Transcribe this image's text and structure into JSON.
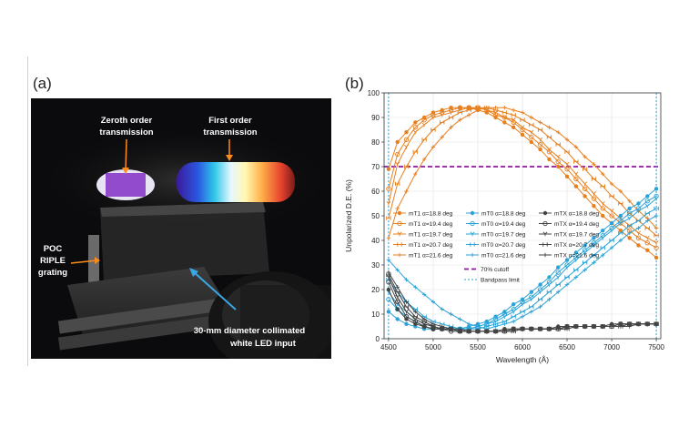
{
  "panel_a": {
    "label": "(a)",
    "zeroth_order": [
      "Zeroth order",
      "transmission"
    ],
    "first_order": [
      "First order",
      "transmission"
    ],
    "grating": [
      "POC",
      "RIPLE",
      "grating"
    ],
    "led_input": [
      "30-mm diameter collimated",
      "white LED input"
    ]
  },
  "panel_b": {
    "label": "(b)"
  },
  "colors": {
    "orange": "#e87f1e",
    "blue": "#2aa3d8",
    "dark": "#444444",
    "cutoff": "#8b1a9a"
  },
  "chart_data": {
    "type": "line",
    "xlabel": "Wavelength (Å)",
    "ylabel": "Unpolarized D.E. (%)",
    "xlim": [
      4450,
      7550
    ],
    "ylim": [
      0,
      100
    ],
    "xticks": [
      4500,
      5000,
      5500,
      6000,
      6500,
      7000,
      7500
    ],
    "yticks": [
      0,
      10,
      20,
      30,
      40,
      50,
      60,
      70,
      80,
      90,
      100
    ],
    "grid": true,
    "legend_position": "middle-left",
    "x": [
      4500,
      4600,
      4700,
      4800,
      4900,
      5000,
      5100,
      5200,
      5300,
      5400,
      5500,
      5600,
      5700,
      5800,
      5900,
      6000,
      6100,
      6200,
      6300,
      6400,
      6500,
      6600,
      6700,
      6800,
      6900,
      7000,
      7100,
      7200,
      7300,
      7400,
      7500
    ],
    "series": [
      {
        "name": "mT1 α=18.8 deg",
        "group": "mT1",
        "values": [
          69,
          80,
          84,
          88,
          90,
          92,
          93,
          94,
          94,
          94,
          93,
          92,
          90,
          88,
          86,
          83,
          80,
          77,
          73,
          70,
          66,
          62,
          58,
          54,
          50,
          47,
          44,
          41,
          38,
          36,
          33
        ]
      },
      {
        "name": "mT1 α=19.4 deg",
        "group": "mT1",
        "values": [
          61,
          75,
          81,
          86,
          89,
          91,
          92,
          93,
          94,
          94,
          94,
          93,
          91,
          90,
          88,
          85,
          82,
          79,
          76,
          72,
          69,
          65,
          61,
          57,
          53,
          50,
          47,
          44,
          41,
          39,
          37
        ]
      },
      {
        "name": "mT1 α=19.7 deg",
        "group": "mT1",
        "values": [
          55,
          71,
          78,
          84,
          87,
          90,
          91,
          92,
          93,
          94,
          94,
          93,
          92,
          90,
          89,
          86,
          84,
          81,
          77,
          74,
          71,
          67,
          63,
          59,
          55,
          52,
          49,
          46,
          43,
          41,
          39
        ]
      },
      {
        "name": "mT1 α=20.7 deg",
        "group": "mT1",
        "values": [
          49,
          63,
          70,
          76,
          81,
          85,
          88,
          90,
          92,
          93,
          94,
          94,
          93,
          92,
          91,
          89,
          87,
          85,
          82,
          79,
          76,
          72,
          69,
          65,
          62,
          58,
          55,
          51,
          48,
          45,
          42
        ]
      },
      {
        "name": "mT1 α=21.6 deg",
        "group": "mT1",
        "values": [
          41,
          53,
          60,
          67,
          73,
          78,
          82,
          86,
          89,
          91,
          93,
          94,
          94,
          94,
          93,
          92,
          90,
          88,
          86,
          84,
          81,
          78,
          74,
          71,
          67,
          63,
          60,
          56,
          52,
          49,
          45
        ]
      },
      {
        "name": "mT0 α=18.8 deg",
        "group": "mT0",
        "values": [
          11,
          8,
          6,
          5,
          4,
          4,
          4,
          4,
          4,
          5,
          6,
          7,
          9,
          11,
          14,
          16,
          19,
          22,
          25,
          29,
          32,
          35,
          38,
          41,
          44,
          47,
          50,
          53,
          55,
          58,
          61
        ]
      },
      {
        "name": "mT0 α=19.4 deg",
        "group": "mT0",
        "values": [
          16,
          12,
          9,
          7,
          5,
          4,
          4,
          4,
          4,
          4,
          5,
          6,
          8,
          10,
          12,
          15,
          17,
          20,
          23,
          27,
          30,
          33,
          36,
          39,
          42,
          45,
          48,
          51,
          53,
          56,
          58
        ]
      },
      {
        "name": "mT0 α=19.7 deg",
        "group": "mT0",
        "values": [
          19,
          14,
          11,
          8,
          6,
          5,
          4,
          4,
          4,
          4,
          5,
          6,
          7,
          9,
          11,
          14,
          16,
          19,
          22,
          25,
          29,
          32,
          35,
          38,
          41,
          44,
          47,
          49,
          52,
          54,
          57
        ]
      },
      {
        "name": "mT0 α=20.7 deg",
        "group": "mT0",
        "values": [
          24,
          19,
          15,
          12,
          9,
          7,
          6,
          5,
          4,
          4,
          4,
          5,
          6,
          7,
          9,
          11,
          13,
          16,
          19,
          22,
          25,
          28,
          31,
          34,
          37,
          40,
          43,
          46,
          48,
          51,
          53
        ]
      },
      {
        "name": "mT0 α=21.6 deg",
        "group": "mT0",
        "values": [
          32,
          28,
          24,
          21,
          18,
          15,
          12,
          10,
          8,
          6,
          5,
          4,
          5,
          6,
          7,
          9,
          11,
          13,
          16,
          19,
          22,
          25,
          28,
          31,
          34,
          37,
          40,
          43,
          45,
          48,
          50
        ]
      },
      {
        "name": "mTX α=18.8 deg",
        "group": "mTX",
        "values": [
          20,
          12,
          8,
          6,
          5,
          4,
          4,
          4,
          3,
          3,
          3,
          3,
          3,
          4,
          4,
          4,
          4,
          4,
          4,
          5,
          5,
          5,
          5,
          5,
          5,
          6,
          6,
          6,
          6,
          6,
          6
        ]
      },
      {
        "name": "mTX α=19.4 deg",
        "group": "mTX",
        "values": [
          23,
          15,
          9,
          7,
          5,
          4,
          4,
          3,
          3,
          3,
          3,
          3,
          3,
          3,
          4,
          4,
          4,
          4,
          4,
          4,
          5,
          5,
          5,
          5,
          5,
          5,
          6,
          6,
          6,
          6,
          6
        ]
      },
      {
        "name": "mTX α=19.7 deg",
        "group": "mTX",
        "values": [
          25,
          17,
          11,
          8,
          6,
          5,
          4,
          4,
          3,
          3,
          3,
          3,
          3,
          3,
          4,
          4,
          4,
          4,
          4,
          4,
          5,
          5,
          5,
          5,
          5,
          5,
          6,
          6,
          6,
          6,
          6
        ]
      },
      {
        "name": "mTX α=20.7 deg",
        "group": "mTX",
        "values": [
          26,
          19,
          13,
          9,
          7,
          5,
          4,
          4,
          3,
          3,
          3,
          3,
          3,
          3,
          3,
          4,
          4,
          4,
          4,
          4,
          4,
          5,
          5,
          5,
          5,
          5,
          5,
          6,
          6,
          6,
          6
        ]
      },
      {
        "name": "mTX α=21.6 deg",
        "group": "mTX",
        "values": [
          27,
          21,
          15,
          11,
          8,
          6,
          5,
          4,
          4,
          3,
          3,
          3,
          3,
          3,
          3,
          4,
          4,
          4,
          4,
          4,
          4,
          5,
          5,
          5,
          5,
          5,
          5,
          5,
          6,
          6,
          6
        ]
      }
    ],
    "cutoff": {
      "label": "70% cutoff",
      "value": 70
    },
    "bandpass": {
      "label": "Bandpass limit",
      "values": [
        4500,
        7500
      ]
    }
  }
}
